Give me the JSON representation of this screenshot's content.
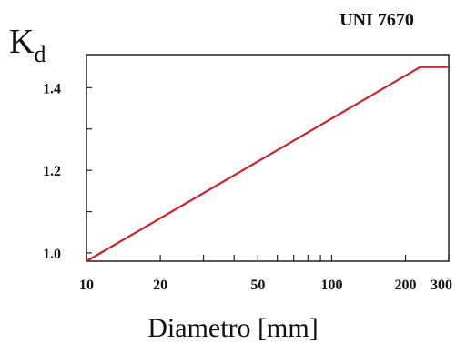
{
  "chart_data": {
    "type": "line",
    "title": "UNI 7670",
    "ylabel_main": "K",
    "ylabel_sub": "d",
    "xlabel": "Diametro [mm]",
    "x_scale": "log",
    "xlim": [
      10,
      300
    ],
    "ylim": [
      0.98,
      1.48
    ],
    "grid": false,
    "x_ticks": [
      {
        "value": 10,
        "label": "10"
      },
      {
        "value": 20,
        "label": "20"
      },
      {
        "value": 30,
        "label": ""
      },
      {
        "value": 40,
        "label": ""
      },
      {
        "value": 50,
        "label": "50"
      },
      {
        "value": 60,
        "label": ""
      },
      {
        "value": 70,
        "label": ""
      },
      {
        "value": 80,
        "label": ""
      },
      {
        "value": 90,
        "label": ""
      },
      {
        "value": 100,
        "label": "100"
      },
      {
        "value": 200,
        "label": "200"
      },
      {
        "value": 300,
        "label": "300"
      }
    ],
    "y_ticks": [
      {
        "value": 1.0,
        "label": "1.0"
      },
      {
        "value": 1.1,
        "label": ""
      },
      {
        "value": 1.2,
        "label": "1.2"
      },
      {
        "value": 1.3,
        "label": ""
      },
      {
        "value": 1.4,
        "label": "1.4"
      }
    ],
    "series": [
      {
        "color": "#c0272d",
        "x": [
          10,
          230,
          300
        ],
        "y": [
          0.98,
          1.45,
          1.45
        ]
      }
    ]
  }
}
